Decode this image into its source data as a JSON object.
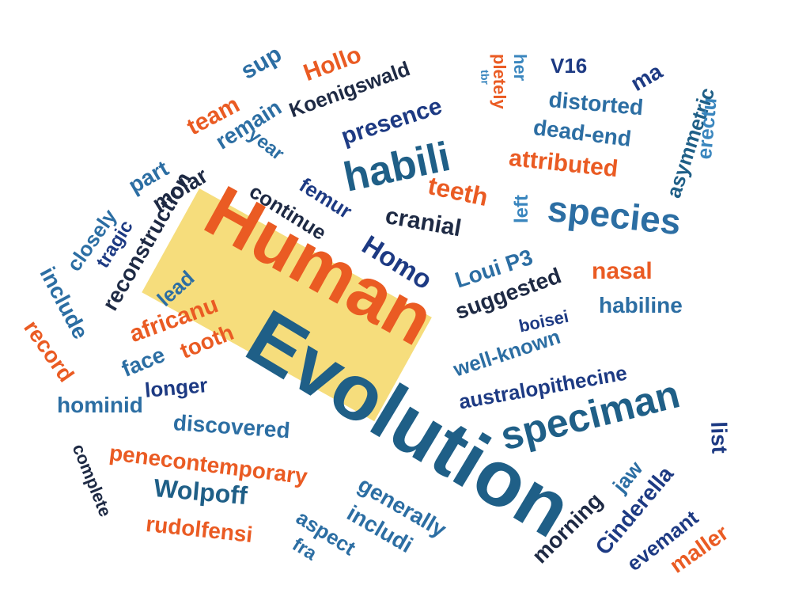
{
  "title_line_1": "Human",
  "title_line_2": "Evolution",
  "colors": {
    "orange": "#ea5b23",
    "navy": "#1d3a83",
    "blue": "#2c6ea3",
    "teal": "#1f5f87",
    "sky": "#3a86be",
    "highlight": "#f6dd7c",
    "background": "#ffffff"
  },
  "words": {
    "sup": "sup",
    "hollo": "Hollo",
    "koenigswald": "Koenigswald",
    "pletely": "pletely",
    "her": "her",
    "v16": "V16",
    "ma": "ma",
    "team": "team",
    "remain": "remain",
    "presence": "presence",
    "tbr": "tbr",
    "distorted": "distorted",
    "asymmetric": "asymmetric",
    "erectu": "erectu",
    "year": "year",
    "habili": "habili",
    "dead_end": "dead-end",
    "part": "part",
    "molar": "molar",
    "attributed": "attributed",
    "femur": "femur",
    "continue": "continue",
    "teeth": "teeth",
    "reconstruction": "reconstruction",
    "closely": "closely",
    "tragic": "tragic",
    "cranial": "cranial",
    "left": "left",
    "species": "species",
    "homo": "Homo",
    "include": "include",
    "lead": "lead",
    "loui_p3": "Loui P3",
    "nasal": "nasal",
    "suggested": "suggested",
    "habiline": "habiline",
    "africanu": "africanu",
    "boisei": "boisei",
    "record": "record",
    "tooth": "tooth",
    "face": "face",
    "well_known": "well-known",
    "australopithecine": "australopithecine",
    "longer": "longer",
    "speciman": "speciman",
    "hominid": "hominid",
    "discovered": "discovered",
    "list": "list",
    "complete": "complete",
    "penecontemporary": "penecontemporary",
    "jaw": "jaw",
    "cinderella": "Cinderella",
    "wolpoff": "Wolpoff",
    "generally": "generally",
    "includi": "includi",
    "morning": "morning",
    "aspect": "aspect",
    "rudolfensi": "rudolfensi",
    "fra": "fra",
    "evemant": "evemant",
    "maller": "maller"
  }
}
